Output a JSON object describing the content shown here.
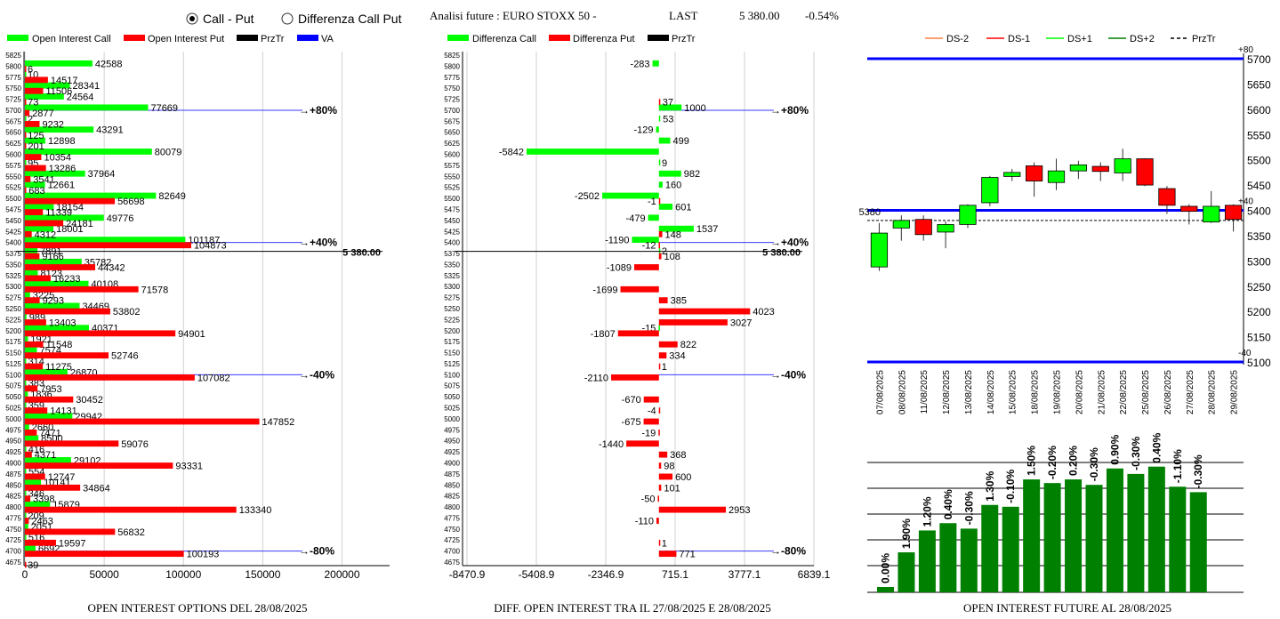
{
  "header": {
    "radio_call_put": "Call - Put",
    "radio_diff": "Differenza Call Put",
    "radio_selected": "call_put",
    "title": "Analisi future : EURO STOXX 50 -",
    "last_label": "LAST",
    "last_value": "5 380.00",
    "last_change": "-0.54%"
  },
  "colors": {
    "green": "#00ff00",
    "red": "#ff0000",
    "black": "#000000",
    "blue": "#0000ff",
    "dark_green": "#008000"
  },
  "chart_data": [
    {
      "id": "oi_options",
      "type": "bar",
      "orientation": "horizontal",
      "title": "OPEN INTEREST OPTIONS DEL 28/08/2025",
      "legend": [
        "Open Interest Call",
        "Open Interest Put",
        "PrzTr",
        "VA"
      ],
      "xlim": [
        0,
        230000
      ],
      "xticks": [
        0,
        50000,
        100000,
        150000,
        200000
      ],
      "strikes": [
        5825,
        5800,
        5775,
        5750,
        5725,
        5700,
        5675,
        5650,
        5625,
        5600,
        5575,
        5550,
        5525,
        5500,
        5475,
        5450,
        5425,
        5400,
        5375,
        5350,
        5325,
        5300,
        5275,
        5250,
        5225,
        5200,
        5175,
        5150,
        5125,
        5100,
        5075,
        5050,
        5025,
        5000,
        4975,
        4950,
        4925,
        4900,
        4875,
        4850,
        4825,
        4800,
        4775,
        4750,
        4725,
        4700,
        4675
      ],
      "series": [
        {
          "name": "Open Interest Call",
          "values": [
            null,
            42588,
            10,
            28341,
            24564,
            77669,
            2,
            43291,
            12898,
            80079,
            95,
            37964,
            12661,
            82649,
            18154,
            49776,
            18001,
            101187,
            7891,
            35782,
            8123,
            40108,
            3225,
            34469,
            989,
            40371,
            1921,
            7574,
            314,
            26870,
            383,
            1836,
            359,
            29942,
            2660,
            8500,
            416,
            29102,
            554,
            10141,
            346,
            15879,
            209,
            2051,
            516,
            6692,
            null
          ]
        },
        {
          "name": "Open Interest Put",
          "values": [
            null,
            6,
            14517,
            11506,
            73,
            2877,
            9232,
            125,
            201,
            10354,
            13286,
            3541,
            683,
            56698,
            11339,
            24181,
            4312,
            104873,
            9166,
            44342,
            16233,
            71578,
            9293,
            53802,
            13403,
            94901,
            11548,
            52746,
            11275,
            107082,
            7953,
            30452,
            14131,
            147852,
            7471,
            59076,
            4371,
            93331,
            12747,
            34864,
            3398,
            133340,
            2463,
            56832,
            19597,
            100193,
            39
          ]
        }
      ],
      "markers": [
        {
          "strike": 5700,
          "label": "+80%"
        },
        {
          "strike": 5400,
          "label": "+40%"
        },
        {
          "strike": 5100,
          "label": "-40%"
        },
        {
          "strike": 4700,
          "label": "-80%"
        }
      ],
      "price": {
        "value": 5380,
        "label": "5 380.00"
      }
    },
    {
      "id": "oi_diff",
      "type": "bar",
      "orientation": "horizontal",
      "title": "DIFF. OPEN INTEREST TRA IL 27/08/2025 E 28/08/2025",
      "legend": [
        "Differenza Call",
        "Differenza Put",
        "PrzTr"
      ],
      "xlim": [
        -8470.9,
        6839.1
      ],
      "xticks": [
        -8470.9,
        -5408.9,
        -2346.9,
        715.1,
        3777.1,
        6839.1
      ],
      "strikes": [
        5825,
        5800,
        5775,
        5750,
        5725,
        5700,
        5675,
        5650,
        5625,
        5600,
        5575,
        5550,
        5525,
        5500,
        5475,
        5450,
        5425,
        5400,
        5375,
        5350,
        5325,
        5300,
        5275,
        5250,
        5225,
        5200,
        5175,
        5150,
        5125,
        5100,
        5075,
        5050,
        5025,
        5000,
        4975,
        4950,
        4925,
        4900,
        4875,
        4850,
        4825,
        4800,
        4775,
        4750,
        4725,
        4700,
        4675
      ],
      "series": [
        {
          "name": "Differenza Call",
          "values": [
            null,
            -283,
            null,
            null,
            null,
            1000,
            53,
            -129,
            499,
            -5842,
            9,
            982,
            160,
            -2502,
            601,
            -479,
            1537,
            -1190,
            2,
            null,
            null,
            null,
            null,
            null,
            null,
            -15,
            null,
            null,
            null,
            null,
            null,
            null,
            null,
            null,
            null,
            null,
            null,
            null,
            null,
            null,
            null,
            null,
            null,
            null,
            null,
            null,
            null
          ]
        },
        {
          "name": "Differenza Put",
          "values": [
            null,
            null,
            null,
            null,
            37,
            null,
            null,
            null,
            null,
            null,
            null,
            null,
            null,
            -1,
            null,
            null,
            148,
            -12,
            108,
            -1089,
            null,
            -1699,
            385,
            4023,
            3027,
            -1807,
            822,
            334,
            1,
            -2110,
            null,
            -670,
            -4,
            -675,
            -19,
            -1440,
            368,
            98,
            600,
            101,
            -50,
            2953,
            -110,
            null,
            1,
            771,
            null
          ]
        }
      ],
      "markers": [
        {
          "strike": 5700,
          "label": "+80%"
        },
        {
          "strike": 5400,
          "label": "+40%"
        },
        {
          "strike": 5100,
          "label": "-40%"
        },
        {
          "strike": 4700,
          "label": "-80%"
        }
      ],
      "price": {
        "value": 5380,
        "label": "5 380.00"
      }
    },
    {
      "id": "candles",
      "type": "candlestick",
      "legend": [
        "DS-2",
        "DS-1",
        "DS+1",
        "DS+2",
        "PrzTr"
      ],
      "ylim": [
        5100,
        5700
      ],
      "yticks": [
        5100,
        5150,
        5200,
        5250,
        5300,
        5350,
        5400,
        5450,
        5500,
        5550,
        5600,
        5650,
        5700
      ],
      "dates": [
        "07/08/2025",
        "08/08/2025",
        "11/08/2025",
        "12/08/2025",
        "13/08/2025",
        "14/08/2025",
        "15/08/2025",
        "18/08/2025",
        "19/08/2025",
        "20/08/2025",
        "21/08/2025",
        "22/08/2025",
        "25/08/2025",
        "26/08/2025",
        "27/08/2025",
        "28/08/2025",
        "29/08/2025"
      ],
      "candles": [
        {
          "o": 5288,
          "h": 5375,
          "l": 5280,
          "c": 5355
        },
        {
          "o": 5365,
          "h": 5390,
          "l": 5340,
          "c": 5380
        },
        {
          "o": 5382,
          "h": 5390,
          "l": 5340,
          "c": 5352
        },
        {
          "o": 5357,
          "h": 5378,
          "l": 5325,
          "c": 5372
        },
        {
          "o": 5372,
          "h": 5412,
          "l": 5365,
          "c": 5410
        },
        {
          "o": 5415,
          "h": 5468,
          "l": 5408,
          "c": 5465
        },
        {
          "o": 5467,
          "h": 5482,
          "l": 5458,
          "c": 5475
        },
        {
          "o": 5488,
          "h": 5495,
          "l": 5427,
          "c": 5458
        },
        {
          "o": 5455,
          "h": 5502,
          "l": 5440,
          "c": 5478
        },
        {
          "o": 5478,
          "h": 5498,
          "l": 5462,
          "c": 5490
        },
        {
          "o": 5487,
          "h": 5495,
          "l": 5458,
          "c": 5477
        },
        {
          "o": 5474,
          "h": 5522,
          "l": 5458,
          "c": 5502
        },
        {
          "o": 5502,
          "h": 5503,
          "l": 5448,
          "c": 5450
        },
        {
          "o": 5443,
          "h": 5448,
          "l": 5393,
          "c": 5410
        },
        {
          "o": 5408,
          "h": 5412,
          "l": 5372,
          "c": 5398
        },
        {
          "o": 5377,
          "h": 5438,
          "l": 5375,
          "c": 5408
        },
        {
          "o": 5410,
          "h": 5412,
          "l": 5358,
          "c": 5382
        }
      ],
      "levels": [
        {
          "value": 5700,
          "label": "+80"
        },
        {
          "value": 5400,
          "label": "+40"
        },
        {
          "value": 5100,
          "label": "-40"
        }
      ],
      "price": {
        "value": 5380,
        "label": "5380"
      }
    },
    {
      "id": "oi_future",
      "type": "bar",
      "title": "OPEN INTEREST FUTURE AL 28/08/2025",
      "values": [
        0.0,
        1.9,
        1.2,
        0.4,
        -0.3,
        1.3,
        -0.1,
        1.5,
        -0.2,
        0.2,
        -0.3,
        0.9,
        -0.3,
        0.4,
        -1.1,
        -0.3
      ],
      "labels": [
        "0.00%",
        "1.90%",
        "1.20%",
        "0.40%",
        "-0.30%",
        "1.30%",
        "-0.10%",
        "1.50%",
        "-0.20%",
        "0.20%",
        "-0.30%",
        "0.90%",
        "-0.30%",
        "0.40%",
        "-1.10%",
        "-0.30%"
      ],
      "levels": [
        0.0,
        1.9,
        3.1,
        3.5,
        3.2,
        4.5,
        4.4,
        5.9,
        5.7,
        5.9,
        5.6,
        6.5,
        6.2,
        6.6,
        5.5,
        5.2
      ]
    }
  ]
}
